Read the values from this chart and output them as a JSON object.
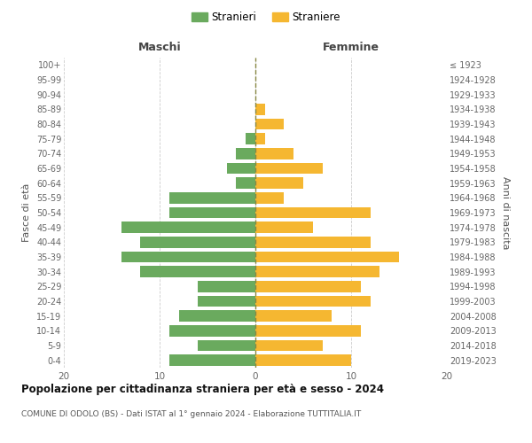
{
  "age_groups_bottom_to_top": [
    "0-4",
    "5-9",
    "10-14",
    "15-19",
    "20-24",
    "25-29",
    "30-34",
    "35-39",
    "40-44",
    "45-49",
    "50-54",
    "55-59",
    "60-64",
    "65-69",
    "70-74",
    "75-79",
    "80-84",
    "85-89",
    "90-94",
    "95-99",
    "100+"
  ],
  "birth_years_bottom_to_top": [
    "2019-2023",
    "2014-2018",
    "2009-2013",
    "2004-2008",
    "1999-2003",
    "1994-1998",
    "1989-1993",
    "1984-1988",
    "1979-1983",
    "1974-1978",
    "1969-1973",
    "1964-1968",
    "1959-1963",
    "1954-1958",
    "1949-1953",
    "1944-1948",
    "1939-1943",
    "1934-1938",
    "1929-1933",
    "1924-1928",
    "≤ 1923"
  ],
  "males_bottom_to_top": [
    9,
    6,
    9,
    8,
    6,
    6,
    12,
    14,
    12,
    14,
    9,
    9,
    2,
    3,
    2,
    1,
    0,
    0,
    0,
    0,
    0
  ],
  "females_bottom_to_top": [
    10,
    7,
    11,
    8,
    12,
    11,
    13,
    15,
    12,
    6,
    12,
    3,
    5,
    7,
    4,
    1,
    3,
    1,
    0,
    0,
    0
  ],
  "male_color": "#6aaa5e",
  "female_color": "#f5b731",
  "bg_color": "#ffffff",
  "grid_color": "#cccccc",
  "center_line_color": "#888844",
  "title": "Popolazione per cittadinanza straniera per età e sesso - 2024",
  "subtitle": "COMUNE DI ODOLO (BS) - Dati ISTAT al 1° gennaio 2024 - Elaborazione TUTTITALIA.IT",
  "xlabel_left": "Maschi",
  "xlabel_right": "Femmine",
  "ylabel_left": "Fasce di età",
  "ylabel_right": "Anni di nascita",
  "legend_males": "Stranieri",
  "legend_females": "Straniere",
  "xlim": 20,
  "bar_height": 0.75
}
